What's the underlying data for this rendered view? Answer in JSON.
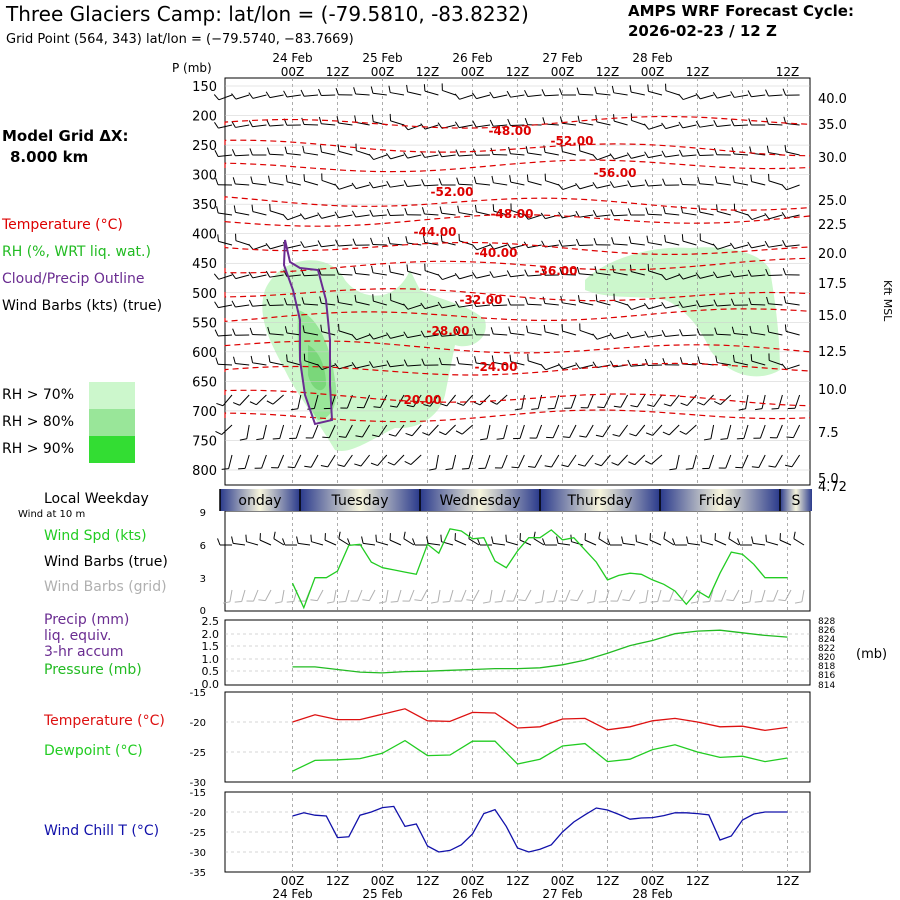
{
  "header": {
    "title": "Three Glaciers Camp:  lat/lon = (-79.5810, -83.8232)",
    "grid_point": "Grid Point (564, 343) lat/lon = (−79.5740, −83.7669)",
    "cycle_label": "AMPS WRF Forecast Cycle:",
    "cycle_value": "2026-02-23 / 12  Z"
  },
  "model_grid": {
    "label": "Model Grid ΔX:",
    "value": "8.000 km"
  },
  "legend_upper": {
    "temperature": "Temperature (°C)",
    "rh": "RH (%, WRT liq. wat.)",
    "cloud": "Cloud/Precip Outline",
    "wind": "Wind Barbs (kts) (true)",
    "rh70": "RH > 70%",
    "rh80": "RH > 80%",
    "rh90": "RH > 90%"
  },
  "colors": {
    "temperature": "#dd0000",
    "rh70": "#ccf7cc",
    "rh80": "#99e699",
    "rh90": "#33dd33",
    "cloud": "#6a2c91",
    "wind_spd": "#22cc22",
    "pressure": "#22bb22",
    "dewpoint": "#22cc22",
    "temp_line": "#dd1111",
    "wind_chill": "#1111aa",
    "grid_barbs": "#b0b0b0"
  },
  "time_axis": {
    "top_dates": [
      "24 Feb",
      "25 Feb",
      "26 Feb",
      "27 Feb",
      "28 Feb"
    ],
    "hour_labels": [
      "00Z",
      "12Z",
      "00Z",
      "12Z",
      "00Z",
      "12Z",
      "00Z",
      "12Z",
      "00Z",
      "12Z"
    ],
    "bottom_dates": [
      "24 Feb",
      "25 Feb",
      "26 Feb",
      "27 Feb",
      "28 Feb"
    ]
  },
  "weekday_strip": {
    "label": "Local Weekday",
    "sublabel": "Wind at 10 m",
    "days": [
      "onday",
      "Tuesday",
      "Wednesday",
      "Thursday",
      "Friday",
      "S"
    ]
  },
  "chart_data": [
    {
      "type": "contour",
      "name": "time-height cross section",
      "y_axis_label": "P (mb)",
      "pressure_levels": [
        150,
        200,
        250,
        300,
        350,
        400,
        450,
        500,
        550,
        600,
        650,
        700,
        750,
        800
      ],
      "right_axis_label": "Kft MSL",
      "right_axis_ticks": [
        "40.0",
        "35.0",
        "30.0",
        "25.0",
        "22.5",
        "20.0",
        "17.5",
        "15.0",
        "12.5",
        "10.0",
        "7.5",
        "5.0",
        "4.72"
      ],
      "temperature_contour_labels": [
        "-48.00",
        "-52.00",
        "-56.00",
        "-52.00",
        "-48.00",
        "-44.00",
        "-40.00",
        "-36.00",
        "-32.00",
        "-28.00",
        "-24.00",
        "-20.00"
      ]
    },
    {
      "type": "line",
      "name": "10 m wind",
      "legend": [
        "Wind Spd (kts)",
        "Wind Barbs (true)",
        "Wind Barbs (grid)"
      ],
      "ylim": [
        0,
        9
      ],
      "y_ticks": [
        "9",
        "6",
        "3",
        "0"
      ],
      "x_hours": [
        0,
        3,
        6,
        9,
        12,
        15,
        18,
        21,
        24,
        27,
        30,
        33,
        36,
        39,
        42,
        45,
        48,
        51,
        54,
        57,
        60,
        63,
        66,
        69,
        72,
        75,
        78,
        81,
        84,
        87,
        90,
        93,
        96,
        99,
        102,
        105,
        108,
        111,
        114,
        117,
        120,
        123,
        126,
        129,
        132
      ],
      "values": [
        2.5,
        0.3,
        3.0,
        3.0,
        3.6,
        5.9,
        6.0,
        4.4,
        3.9,
        3.7,
        3.5,
        3.3,
        6.0,
        5.2,
        7.4,
        7.2,
        6.5,
        6.6,
        4.5,
        3.9,
        5.4,
        6.6,
        6.6,
        7.3,
        6.4,
        6.6,
        5.5,
        4.4,
        2.8,
        3.2,
        3.4,
        3.3,
        2.8,
        2.4,
        1.8,
        0.6,
        1.8,
        1.2,
        3.4,
        5.3,
        5.1,
        4.2,
        3.0,
        3.0,
        3.0
      ]
    },
    {
      "type": "line",
      "name": "precip and pressure",
      "legend": [
        "Precip (mm)",
        "liq. equiv.",
        "3-hr accum",
        "Pressure (mb)"
      ],
      "left_ticks": [
        "2.5",
        "2.0",
        "1.5",
        "1.0",
        "0.5",
        "0.0"
      ],
      "right_ticks": [
        "828",
        "826",
        "824",
        "822",
        "820",
        "818",
        "816",
        "814"
      ],
      "right_unit": "(mb)",
      "ylim_pressure": [
        814,
        829
      ],
      "x_hours": [
        0,
        6,
        12,
        18,
        24,
        30,
        36,
        42,
        48,
        54,
        60,
        66,
        72,
        78,
        84,
        90,
        96,
        102,
        108,
        114,
        120,
        126,
        132
      ],
      "pressure": [
        818.0,
        818.0,
        817.4,
        816.8,
        816.6,
        816.9,
        817.0,
        817.2,
        817.4,
        817.6,
        817.6,
        817.8,
        818.5,
        819.6,
        821.2,
        823.0,
        824.2,
        825.8,
        826.4,
        826.6,
        826.0,
        825.4,
        825.0
      ]
    },
    {
      "type": "line",
      "name": "temperature and dewpoint",
      "legend": [
        "Temperature (°C)",
        "Dewpoint (°C)"
      ],
      "y_ticks": [
        "-15",
        "-20",
        "-25",
        "-30"
      ],
      "ylim": [
        -30,
        -15
      ],
      "x_hours": [
        0,
        6,
        12,
        18,
        24,
        30,
        36,
        42,
        48,
        54,
        60,
        66,
        72,
        78,
        84,
        90,
        96,
        102,
        108,
        114,
        120,
        126,
        132
      ],
      "temperature": [
        -20.0,
        -18.8,
        -19.6,
        -19.6,
        -18.7,
        -17.8,
        -19.8,
        -19.9,
        -18.4,
        -18.5,
        -21.0,
        -20.8,
        -19.5,
        -19.4,
        -21.3,
        -20.8,
        -19.8,
        -19.4,
        -20.0,
        -20.8,
        -20.7,
        -21.4,
        -20.9
      ],
      "dewpoint": [
        -28.2,
        -26.4,
        -26.3,
        -26.1,
        -25.2,
        -23.1,
        -25.6,
        -25.5,
        -23.2,
        -23.2,
        -27.0,
        -26.2,
        -24.0,
        -23.6,
        -26.6,
        -26.2,
        -24.6,
        -23.8,
        -25.0,
        -25.9,
        -25.7,
        -26.6,
        -26.0
      ]
    },
    {
      "type": "line",
      "name": "wind chill",
      "legend": [
        "Wind Chill T (°C)"
      ],
      "y_ticks": [
        "-15",
        "-20",
        "-25",
        "-30",
        "-35"
      ],
      "ylim": [
        -35,
        -15
      ],
      "x_hours": [
        0,
        3,
        6,
        9,
        12,
        15,
        18,
        21,
        24,
        27,
        30,
        33,
        36,
        39,
        42,
        45,
        48,
        51,
        54,
        57,
        60,
        63,
        66,
        69,
        72,
        75,
        78,
        81,
        84,
        87,
        90,
        93,
        96,
        99,
        102,
        105,
        108,
        111,
        114,
        117,
        120,
        123,
        126,
        129,
        132
      ],
      "values": [
        -21.0,
        -20.2,
        -20.8,
        -21.0,
        -26.4,
        -26.2,
        -20.8,
        -20.0,
        -18.9,
        -18.6,
        -23.6,
        -23.0,
        -28.5,
        -30.0,
        -29.6,
        -28.2,
        -25.5,
        -20.4,
        -19.4,
        -23.6,
        -29.0,
        -30.0,
        -29.3,
        -28.2,
        -25.0,
        -22.5,
        -20.7,
        -19.0,
        -19.5,
        -20.6,
        -21.8,
        -21.5,
        -21.4,
        -20.9,
        -20.2,
        -20.2,
        -20.4,
        -20.7,
        -27.0,
        -26.0,
        -22.0,
        -20.5,
        -20.0,
        -20.0,
        -20.0
      ]
    }
  ]
}
